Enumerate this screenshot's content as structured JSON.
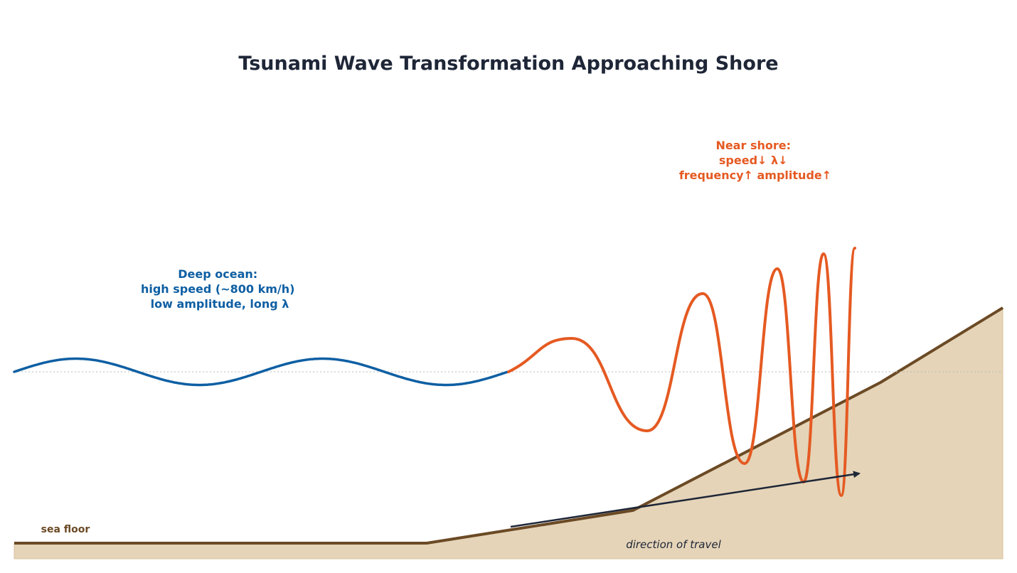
{
  "title": "Tsunami Wave Transformation Approaching Shore",
  "deep_ocean_label": {
    "line1": "Deep ocean:",
    "line2": "high speed (~800 km/h)",
    "line3": "low amplitude, long λ"
  },
  "near_shore_label": {
    "line1": "Near shore:",
    "line2": "speed↓  λ↓",
    "line3": "frequency↑  amplitude↑"
  },
  "sea_floor_label": "sea floor",
  "direction_label": "direction of travel",
  "colors": {
    "deep_wave": "#0e5fa3",
    "shore_wave": "#e55a22",
    "sea_floor_line": "#6b4a25",
    "sea_floor_fill": "#e5d4b8",
    "arrow": "#1e2637",
    "still_water": "#b8b8b8"
  }
}
